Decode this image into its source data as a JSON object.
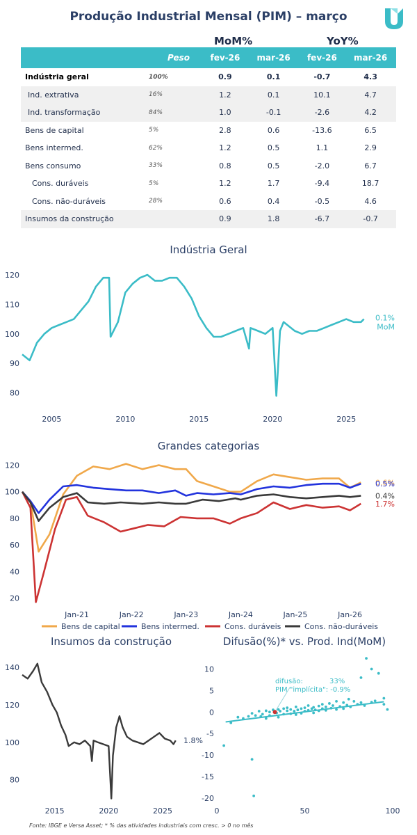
{
  "header": {
    "title": "Produção Industrial Mensal (PIM) – março"
  },
  "table": {
    "group_mom": "MoM%",
    "group_yoy": "YoY%",
    "columns": [
      "",
      "Peso",
      "fev-26",
      "mar-26",
      "fev-26",
      "mar-26"
    ],
    "rows": [
      {
        "name": "Indústria geral",
        "peso": "100%",
        "mom_fev": "0.9",
        "mom_mar": "0.1",
        "yoy_fev": "-0.7",
        "yoy_mar": "4.3"
      },
      {
        "name": "Ind. extrativa",
        "peso": "16%",
        "mom_fev": "1.2",
        "mom_mar": "0.1",
        "yoy_fev": "10.1",
        "yoy_mar": "4.7"
      },
      {
        "name": "Ind. transformação",
        "peso": "84%",
        "mom_fev": "1.0",
        "mom_mar": "-0.1",
        "yoy_fev": "-2.6",
        "yoy_mar": "4.2"
      },
      {
        "name": "Bens de capital",
        "peso": "5%",
        "mom_fev": "2.8",
        "mom_mar": "0.6",
        "yoy_fev": "-13.6",
        "yoy_mar": "6.5"
      },
      {
        "name": "Bens intermed.",
        "peso": "62%",
        "mom_fev": "1.2",
        "mom_mar": "0.5",
        "yoy_fev": "1.1",
        "yoy_mar": "2.9"
      },
      {
        "name": "Bens consumo",
        "peso": "33%",
        "mom_fev": "0.8",
        "mom_mar": "0.5",
        "yoy_fev": "-2.0",
        "yoy_mar": "6.7"
      },
      {
        "name": "Cons. duráveis",
        "peso": "5%",
        "mom_fev": "1.2",
        "mom_mar": "1.7",
        "yoy_fev": "-9.4",
        "yoy_mar": "18.7"
      },
      {
        "name": "Cons. não-duráveis",
        "peso": "28%",
        "mom_fev": "0.6",
        "mom_mar": "0.4",
        "yoy_fev": "-0.5",
        "yoy_mar": "4.6"
      },
      {
        "name": "Insumos da construção",
        "peso": "",
        "mom_fev": "0.9",
        "mom_mar": "1.8",
        "yoy_fev": "-6.7",
        "yoy_mar": "-0.7"
      }
    ]
  },
  "footer": {
    "source": "Fonte: IBGE e Versa Asset; * % das atividades industriais com cresc. > 0 no mês"
  },
  "colors": {
    "teal": "#3bbcc7",
    "orange": "#f0a84a",
    "blue": "#2233dd",
    "red": "#cc3333",
    "dark": "#3a3a3a"
  },
  "chart_data": [
    {
      "type": "line",
      "title": "Indústria Geral",
      "xlim": [
        2003,
        2026.5
      ],
      "ylim": [
        74,
        124
      ],
      "xticks": [
        2005,
        2010,
        2015,
        2020,
        2025
      ],
      "yticks": [
        80,
        90,
        100,
        110,
        120
      ],
      "annotation": {
        "value": "0.1%",
        "label": "MoM"
      },
      "series": [
        {
          "x": [
            2003.0,
            2003.5,
            2004.0,
            2004.5,
            2005.0,
            2005.5,
            2006.0,
            2006.5,
            2007.0,
            2007.5,
            2008.0,
            2008.5,
            2008.9,
            2009.0,
            2009.5,
            2010.0,
            2010.5,
            2011.0,
            2011.5,
            2012.0,
            2012.5,
            2013.0,
            2013.5,
            2014.0,
            2014.5,
            2015.0,
            2015.5,
            2016.0,
            2016.5,
            2017.0,
            2017.5,
            2018.0,
            2018.4,
            2018.5,
            2019.0,
            2019.5,
            2020.0,
            2020.25,
            2020.35,
            2020.5,
            2020.75,
            2021.0,
            2021.5,
            2022.0,
            2022.5,
            2023.0,
            2023.5,
            2024.0,
            2024.5,
            2025.0,
            2025.5,
            2026.0,
            2026.2
          ],
          "y": [
            93,
            91,
            97,
            100,
            102,
            103,
            104,
            105,
            108,
            111,
            116,
            119,
            119,
            99,
            104,
            114,
            117,
            119,
            120,
            118,
            118,
            119,
            119,
            116,
            112,
            106,
            102,
            99,
            99,
            100,
            101,
            102,
            95,
            102,
            101,
            100,
            102,
            79,
            87,
            101,
            104,
            103,
            101,
            100,
            101,
            101,
            102,
            103,
            104,
            105,
            104,
            104,
            105
          ]
        }
      ]
    },
    {
      "type": "line",
      "title": "Grandes categorias",
      "xlim": [
        2020.0,
        2026.4
      ],
      "ylim": [
        14,
        126
      ],
      "xticks": [
        2021,
        2022,
        2023,
        2024,
        2025,
        2026
      ],
      "xticklabels": [
        "Jan-21",
        "Jan-22",
        "Jan-23",
        "Jan-24",
        "Jan-25",
        "Jan-26"
      ],
      "yticks": [
        20,
        40,
        60,
        80,
        100,
        120
      ],
      "series": [
        {
          "name": "Bens de capital",
          "color": "#f0a84a",
          "end_label": "0.6%",
          "x": [
            2020.0,
            2020.15,
            2020.3,
            2020.5,
            2020.75,
            2021.0,
            2021.3,
            2021.6,
            2021.9,
            2022.2,
            2022.5,
            2022.8,
            2023.0,
            2023.2,
            2023.5,
            2023.8,
            2024.0,
            2024.3,
            2024.6,
            2024.9,
            2025.2,
            2025.5,
            2025.8,
            2026.0,
            2026.2
          ],
          "y": [
            100,
            93,
            55,
            68,
            98,
            112,
            119,
            117,
            121,
            117,
            120,
            117,
            117,
            108,
            104,
            100,
            100,
            108,
            113,
            111,
            109,
            110,
            110,
            103,
            107
          ]
        },
        {
          "name": "Bens intermed.",
          "color": "#2233dd",
          "end_label": "0.5%",
          "x": [
            2020.0,
            2020.15,
            2020.3,
            2020.5,
            2020.75,
            2021.0,
            2021.3,
            2021.6,
            2021.9,
            2022.2,
            2022.5,
            2022.8,
            2023.0,
            2023.2,
            2023.5,
            2023.8,
            2024.0,
            2024.3,
            2024.6,
            2024.9,
            2025.2,
            2025.5,
            2025.8,
            2026.0,
            2026.2
          ],
          "y": [
            100,
            93,
            84,
            94,
            104,
            105,
            103,
            102,
            101,
            101,
            99,
            101,
            97,
            99,
            98,
            99,
            98,
            102,
            104,
            103,
            105,
            106,
            106,
            103,
            106
          ]
        },
        {
          "name": "Cons. duráveis",
          "color": "#cc3333",
          "end_label": "1.7%",
          "x": [
            2020.0,
            2020.15,
            2020.25,
            2020.4,
            2020.6,
            2020.8,
            2021.0,
            2021.2,
            2021.5,
            2021.8,
            2022.0,
            2022.3,
            2022.6,
            2022.9,
            2023.2,
            2023.5,
            2023.8,
            2024.0,
            2024.3,
            2024.6,
            2024.9,
            2025.2,
            2025.5,
            2025.8,
            2026.0,
            2026.2
          ],
          "y": [
            100,
            88,
            17,
            40,
            72,
            94,
            96,
            82,
            77,
            70,
            72,
            75,
            74,
            81,
            80,
            80,
            76,
            80,
            84,
            92,
            87,
            90,
            88,
            89,
            86,
            91
          ]
        },
        {
          "name": "Cons. não-duráveis",
          "color": "#3a3a3a",
          "end_label": "0.4%",
          "x": [
            2020.0,
            2020.15,
            2020.3,
            2020.5,
            2020.75,
            2021.0,
            2021.2,
            2021.5,
            2021.8,
            2022.2,
            2022.5,
            2022.8,
            2023.0,
            2023.3,
            2023.6,
            2023.9,
            2024.0,
            2024.3,
            2024.6,
            2024.9,
            2025.2,
            2025.5,
            2025.8,
            2026.0,
            2026.2
          ],
          "y": [
            100,
            92,
            78,
            88,
            96,
            99,
            92,
            91,
            92,
            91,
            92,
            91,
            91,
            94,
            93,
            95,
            94,
            97,
            98,
            96,
            95,
            96,
            97,
            96,
            97
          ]
        }
      ]
    },
    {
      "type": "line",
      "title": "Insumos da construção",
      "xlim": [
        2012.0,
        2026.8
      ],
      "ylim": [
        68,
        146
      ],
      "xticks": [
        2015,
        2020,
        2025
      ],
      "yticks": [
        80,
        100,
        120,
        140
      ],
      "annotation": {
        "value": "1.8%"
      },
      "series": [
        {
          "x": [
            2012.0,
            2012.5,
            2013.0,
            2013.4,
            2013.8,
            2014.3,
            2014.8,
            2015.2,
            2015.6,
            2016.0,
            2016.3,
            2016.8,
            2017.3,
            2017.8,
            2018.3,
            2018.45,
            2018.6,
            2019.0,
            2019.5,
            2020.0,
            2020.25,
            2020.4,
            2020.7,
            2021.0,
            2021.3,
            2021.7,
            2022.2,
            2022.7,
            2023.2,
            2023.7,
            2024.2,
            2024.7,
            2025.2,
            2025.7,
            2026.0,
            2026.2
          ],
          "y": [
            136,
            134,
            138,
            142,
            132,
            127,
            120,
            116,
            109,
            104,
            98,
            100,
            99,
            101,
            98,
            90,
            101,
            100,
            99,
            98,
            70,
            93,
            108,
            114,
            108,
            103,
            101,
            100,
            99,
            101,
            103,
            105,
            102,
            101,
            99,
            101
          ]
        }
      ]
    },
    {
      "type": "scatter",
      "title": "Difusão(%)* vs. Prod. Ind(MoM)",
      "xlim": [
        0,
        100
      ],
      "ylim": [
        -21,
        13
      ],
      "xticks": [
        0,
        50,
        100
      ],
      "yticks": [
        -20,
        -15,
        -10,
        -5,
        0,
        5,
        10
      ],
      "trend": {
        "x": [
          5,
          95
        ],
        "y": [
          -2.3,
          2.4
        ]
      },
      "annotation": {
        "text1": "difusão:",
        "value1": "33%",
        "text2": "PIM \"implícita\": -0.9%",
        "highlight": [
          33,
          0
        ]
      },
      "x": [
        4,
        8,
        12,
        15,
        18,
        20,
        22,
        24,
        25,
        26,
        28,
        28,
        30,
        30,
        32,
        34,
        35,
        35,
        36,
        38,
        38,
        40,
        40,
        42,
        42,
        44,
        45,
        45,
        46,
        48,
        48,
        50,
        50,
        52,
        52,
        54,
        55,
        55,
        56,
        58,
        58,
        60,
        60,
        62,
        62,
        64,
        65,
        66,
        68,
        68,
        70,
        72,
        72,
        74,
        75,
        76,
        78,
        80,
        82,
        82,
        84,
        85,
        88,
        88,
        90,
        92,
        95,
        95,
        97,
        20,
        21
      ],
      "y": [
        -7.8,
        -2.5,
        -1.2,
        -1.5,
        -1,
        -0.3,
        -0.8,
        0.2,
        -1.0,
        -0.5,
        0.3,
        -1.5,
        0,
        -0.8,
        0.5,
        -0.2,
        0.6,
        -1.2,
        0.2,
        0.8,
        -0.5,
        0.3,
        1.0,
        -0.4,
        0.6,
        0.2,
        1.2,
        -0.6,
        0.5,
        0.8,
        -0.3,
        1.0,
        0.2,
        0.4,
        1.5,
        0.8,
        -0.2,
        1.1,
        0.5,
        1.4,
        0.3,
        0.8,
        1.8,
        0.4,
        1.2,
        2.0,
        0.9,
        1.5,
        0.6,
        2.5,
        1.3,
        0.8,
        2.2,
        1.6,
        3.0,
        1.2,
        2.5,
        1.8,
        8.0,
        2.2,
        1.5,
        12.5,
        2.3,
        10.0,
        2.6,
        9.0,
        1.8,
        3.2,
        0.6,
        -11.0,
        -19.5
      ]
    }
  ]
}
